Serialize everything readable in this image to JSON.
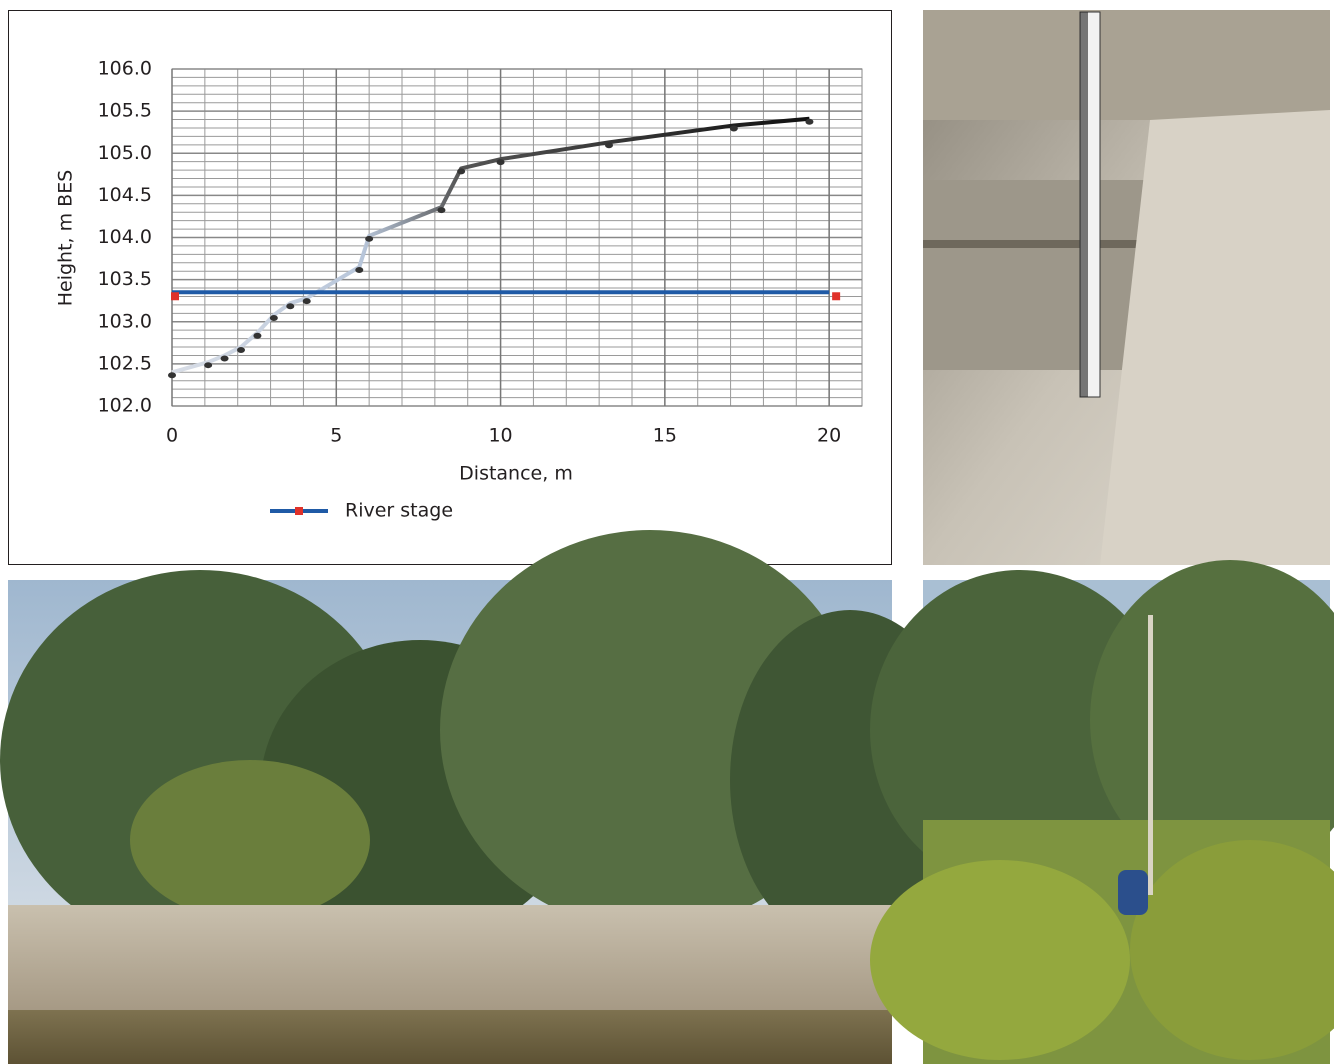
{
  "chart_data": {
    "type": "line",
    "x_label": "Distance, m",
    "y_label": "Height, m BES",
    "xlim": [
      0,
      21
    ],
    "ylim": [
      102,
      106
    ],
    "xticks": [
      0,
      5,
      10,
      15,
      20
    ],
    "yticks": [
      {
        "value": 102,
        "label": "102.0"
      },
      {
        "value": 102.5,
        "label": "102.5"
      },
      {
        "value": 103,
        "label": "103.0"
      },
      {
        "value": 103.5,
        "label": "103.5"
      },
      {
        "value": 104,
        "label": "104.0"
      },
      {
        "value": 104.5,
        "label": "104.5"
      },
      {
        "value": 105,
        "label": "105.0"
      },
      {
        "value": 105.5,
        "label": "105.5"
      },
      {
        "value": 106,
        "label": "106.0"
      }
    ],
    "grid": true,
    "legend": "bottom",
    "series": [
      {
        "color": "#231f20",
        "marker_color": "#333333",
        "x": [
          0,
          1.1,
          1.6,
          2.1,
          2.6,
          3.1,
          3.6,
          4.1,
          5.7,
          6.0,
          8.2,
          8.8,
          10.0,
          13.3,
          17.1,
          19.4
        ],
        "values": [
          102.4,
          102.52,
          102.6,
          102.7,
          102.87,
          103.08,
          103.22,
          103.28,
          103.65,
          104.02,
          104.36,
          104.82,
          104.93,
          105.13,
          105.33,
          105.41
        ]
      },
      {
        "name": "River stage",
        "color": "#1f5aa6",
        "marker_color": "#e0322a",
        "x": [
          0,
          20
        ],
        "values": [
          103.35,
          103.35
        ]
      }
    ]
  }
}
